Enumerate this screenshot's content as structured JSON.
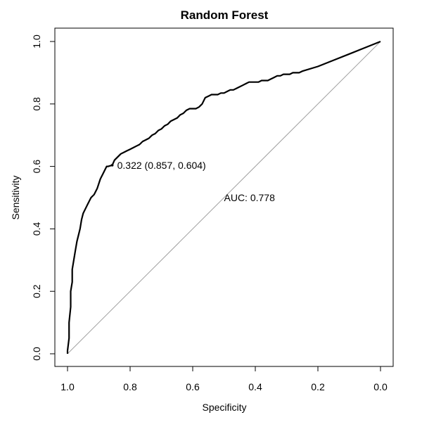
{
  "chart_data": {
    "type": "line",
    "title": "Random Forest",
    "xlabel": "Specificity",
    "ylabel": "Sensitivity",
    "xlim": [
      1.0,
      0.0
    ],
    "ylim": [
      0.0,
      1.0
    ],
    "x_reversed": true,
    "x_ticks": [
      1.0,
      0.8,
      0.6,
      0.4,
      0.2,
      0.0
    ],
    "x_tick_labels": [
      "1.0",
      "0.8",
      "0.6",
      "0.4",
      "0.2",
      "0.0"
    ],
    "y_ticks": [
      0.0,
      0.2,
      0.4,
      0.6,
      0.8,
      1.0
    ],
    "y_tick_labels": [
      "0.0",
      "0.2",
      "0.4",
      "0.6",
      "0.8",
      "1.0"
    ],
    "grid": false,
    "legend": "none",
    "reference_line": {
      "from": [
        1.0,
        0.0
      ],
      "to": [
        0.0,
        1.0
      ],
      "color": "#a0a0a0"
    },
    "series": [
      {
        "color": "#000000",
        "specificity": [
          1.0,
          1.0,
          0.995,
          0.995,
          0.99,
          0.99,
          0.985,
          0.985,
          0.98,
          0.975,
          0.97,
          0.965,
          0.96,
          0.955,
          0.95,
          0.94,
          0.935,
          0.925,
          0.915,
          0.905,
          0.895,
          0.885,
          0.875,
          0.87,
          0.857,
          0.85,
          0.84,
          0.83,
          0.82,
          0.81,
          0.8,
          0.79,
          0.78,
          0.77,
          0.76,
          0.75,
          0.74,
          0.73,
          0.72,
          0.71,
          0.7,
          0.69,
          0.68,
          0.67,
          0.66,
          0.65,
          0.64,
          0.63,
          0.62,
          0.61,
          0.6,
          0.59,
          0.58,
          0.57,
          0.56,
          0.55,
          0.54,
          0.53,
          0.52,
          0.51,
          0.5,
          0.49,
          0.48,
          0.47,
          0.46,
          0.45,
          0.44,
          0.43,
          0.42,
          0.41,
          0.4,
          0.39,
          0.38,
          0.37,
          0.36,
          0.35,
          0.34,
          0.33,
          0.32,
          0.31,
          0.3,
          0.29,
          0.28,
          0.27,
          0.26,
          0.25,
          0.2,
          0.15,
          0.1,
          0.05,
          0.0
        ],
        "sensitivity": [
          0.0,
          0.01,
          0.05,
          0.1,
          0.15,
          0.2,
          0.23,
          0.27,
          0.3,
          0.33,
          0.36,
          0.38,
          0.4,
          0.43,
          0.45,
          0.47,
          0.48,
          0.5,
          0.51,
          0.53,
          0.56,
          0.58,
          0.6,
          0.6,
          0.604,
          0.62,
          0.63,
          0.64,
          0.645,
          0.65,
          0.655,
          0.66,
          0.665,
          0.67,
          0.68,
          0.685,
          0.69,
          0.7,
          0.705,
          0.715,
          0.72,
          0.73,
          0.735,
          0.745,
          0.75,
          0.755,
          0.765,
          0.77,
          0.78,
          0.785,
          0.785,
          0.785,
          0.79,
          0.8,
          0.82,
          0.825,
          0.83,
          0.83,
          0.83,
          0.835,
          0.835,
          0.84,
          0.845,
          0.845,
          0.85,
          0.855,
          0.86,
          0.865,
          0.87,
          0.87,
          0.87,
          0.87,
          0.875,
          0.875,
          0.875,
          0.88,
          0.885,
          0.89,
          0.89,
          0.895,
          0.895,
          0.895,
          0.9,
          0.9,
          0.9,
          0.905,
          0.92,
          0.94,
          0.96,
          0.98,
          1.0
        ]
      }
    ],
    "annotations": [
      {
        "text": "0.322 (0.857, 0.604)",
        "x": 0.857,
        "y": 0.604,
        "point": true
      },
      {
        "text": "AUC: 0.778",
        "x": 0.5,
        "y": 0.5
      }
    ]
  }
}
